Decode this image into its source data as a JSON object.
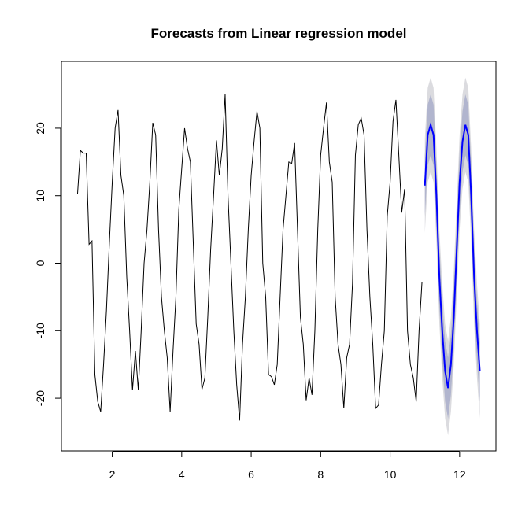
{
  "chart_data": {
    "type": "line",
    "title": "Forecasts from Linear regression model",
    "xlim": [
      0.537,
      13.046
    ],
    "ylim": [
      -27.8,
      29.9
    ],
    "xticks": [
      2,
      4,
      6,
      8,
      10,
      12
    ],
    "yticks": [
      -20,
      -10,
      0,
      10,
      20
    ],
    "series": [
      {
        "color": "#000000",
        "x": [
          1,
          1.083,
          1.167,
          1.25,
          1.333,
          1.417,
          1.5,
          1.583,
          1.667,
          1.75,
          1.833,
          1.917,
          2,
          2.083,
          2.167,
          2.25,
          2.333,
          2.417,
          2.5,
          2.583,
          2.667,
          2.75,
          2.833,
          2.917,
          3,
          3.083,
          3.167,
          3.25,
          3.333,
          3.417,
          3.5,
          3.583,
          3.667,
          3.75,
          3.833,
          3.917,
          4,
          4.083,
          4.167,
          4.25,
          4.333,
          4.417,
          4.5,
          4.583,
          4.667,
          4.75,
          4.833,
          4.917,
          5,
          5.083,
          5.167,
          5.25,
          5.333,
          5.417,
          5.5,
          5.583,
          5.667,
          5.75,
          5.833,
          5.917,
          6,
          6.083,
          6.167,
          6.25,
          6.333,
          6.417,
          6.5,
          6.583,
          6.667,
          6.75,
          6.833,
          6.917,
          7,
          7.083,
          7.167,
          7.25,
          7.333,
          7.417,
          7.5,
          7.583,
          7.667,
          7.75,
          7.833,
          7.917,
          8,
          8.083,
          8.167,
          8.25,
          8.333,
          8.417,
          8.5,
          8.583,
          8.667,
          8.75,
          8.833,
          8.917,
          9,
          9.083,
          9.167,
          9.25,
          9.333,
          9.417,
          9.5,
          9.583,
          9.667,
          9.75,
          9.833,
          9.917,
          10,
          10.083,
          10.167,
          10.25,
          10.333,
          10.417,
          10.5,
          10.583,
          10.667,
          10.75,
          10.833,
          10.917
        ],
        "values": [
          10.2,
          16.7,
          16.3,
          16.3,
          2.8,
          3.3,
          -16.5,
          -20.5,
          -22,
          -15,
          -7,
          3,
          12,
          20,
          22.7,
          13,
          10,
          -2,
          -10,
          -18.8,
          -13,
          -18.8,
          -10,
          0,
          5,
          12,
          20.8,
          19,
          5,
          -5,
          -10,
          -14,
          -22,
          -13,
          -5,
          8,
          14,
          20,
          17,
          15,
          3,
          -9,
          -12,
          -18.7,
          -17,
          -8,
          2,
          10,
          18.2,
          13,
          17,
          25,
          10,
          0,
          -10,
          -18,
          -23.3,
          -12,
          -5,
          5,
          13,
          18,
          22.5,
          20,
          0,
          -5,
          -16.5,
          -16.8,
          -18,
          -15,
          -5,
          5,
          10,
          15,
          14.8,
          17.8,
          5,
          -8,
          -12,
          -20.3,
          -17,
          -19.5,
          -10,
          5,
          16,
          20,
          23.8,
          15,
          12,
          -5,
          -12,
          -15,
          -21.5,
          -14,
          -12,
          -3,
          16,
          20.5,
          21.5,
          19,
          5,
          -5,
          -12,
          -21.5,
          -21,
          -15,
          -10,
          7,
          12,
          21,
          24.2,
          16,
          7.5,
          11,
          -10,
          -15,
          -17,
          -20.5,
          -10,
          -2.8
        ]
      },
      {
        "color": "#0000ff",
        "x": [
          11,
          11.083,
          11.167,
          11.25,
          11.333,
          11.417,
          11.5,
          11.583,
          11.667,
          11.75,
          11.833,
          11.917,
          12,
          12.083,
          12.167,
          12.25,
          12.333,
          12.417,
          12.5,
          12.583
        ],
        "values": [
          11.5,
          19,
          20.5,
          19,
          10,
          -2,
          -10,
          -16,
          -18.5,
          -15,
          -8,
          2,
          12,
          18,
          20.5,
          19,
          10,
          -2,
          -10,
          -16
        ],
        "bands": [
          {
            "color": "#dbdbdf",
            "lower": [
              4.5,
              12,
              13.5,
              12,
              3,
              -9,
              -17,
              -23,
              -25.5,
              -22,
              -15,
              -5,
              5,
              11,
              13.5,
              12,
              3,
              -9,
              -17,
              -23
            ],
            "upper": [
              18.5,
              26,
              27.5,
              26,
              17,
              5,
              -3,
              -9,
              -11.5,
              -8,
              -1,
              9,
              19,
              25,
              27.5,
              26,
              17,
              5,
              -3,
              -9
            ]
          },
          {
            "color": "#b1b5ce",
            "lower": [
              7,
              14.5,
              16,
              14.5,
              5.5,
              -6.5,
              -14.5,
              -20.5,
              -23,
              -19.5,
              -12.5,
              -2.5,
              7.5,
              13.5,
              16,
              14.5,
              5.5,
              -6.5,
              -14.5,
              -20.5
            ],
            "upper": [
              16,
              23.5,
              25,
              23.5,
              14.5,
              2.5,
              -5.5,
              -11.5,
              -14,
              -10.5,
              -3.5,
              6.5,
              16.5,
              22.5,
              25,
              23.5,
              14.5,
              2.5,
              -5.5,
              -11.5
            ]
          }
        ]
      }
    ]
  }
}
